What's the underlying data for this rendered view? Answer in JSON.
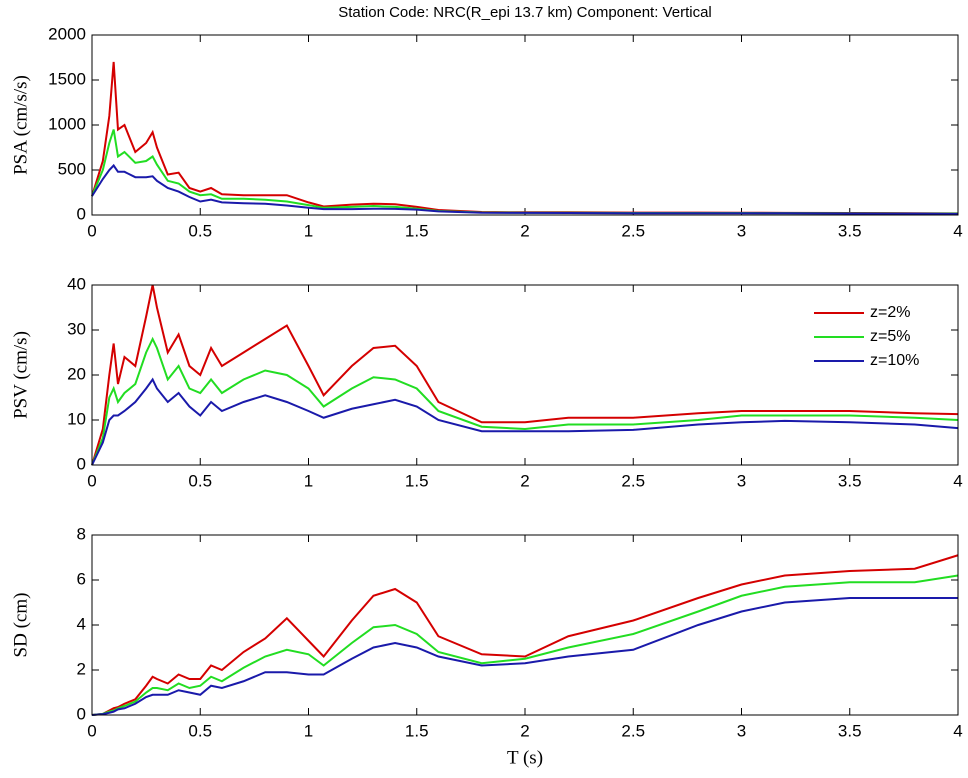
{
  "chart_data": [
    {
      "type": "line",
      "title": "Station Code: NRC(R_epi 13.7 km) Component: Vertical",
      "y_label": "PSA (cm/s/s)",
      "x": [
        0,
        0.05,
        0.08,
        0.1,
        0.12,
        0.15,
        0.2,
        0.25,
        0.28,
        0.3,
        0.35,
        0.4,
        0.45,
        0.5,
        0.55,
        0.6,
        0.7,
        0.8,
        0.9,
        1.0,
        1.07,
        1.2,
        1.3,
        1.4,
        1.5,
        1.6,
        1.8,
        2.0,
        2.2,
        2.5,
        2.8,
        3.0,
        3.2,
        3.5,
        3.8,
        4.0
      ],
      "series": [
        {
          "color": "#d40000",
          "values": [
            210,
            600,
            1100,
            1700,
            950,
            1000,
            700,
            800,
            920,
            750,
            450,
            470,
            300,
            260,
            300,
            230,
            220,
            220,
            220,
            140,
            95,
            115,
            125,
            120,
            90,
            55,
            33,
            30,
            30,
            26,
            26,
            25,
            24,
            22,
            19,
            18
          ]
        },
        {
          "color": "#22dd22",
          "values": [
            210,
            500,
            800,
            950,
            650,
            700,
            580,
            600,
            650,
            560,
            380,
            350,
            260,
            220,
            230,
            180,
            180,
            170,
            150,
            110,
            80,
            90,
            100,
            90,
            70,
            45,
            28,
            25,
            25,
            22,
            22,
            22,
            21,
            20,
            17,
            16
          ]
        },
        {
          "color": "#1a1aaa",
          "values": [
            210,
            400,
            500,
            550,
            480,
            480,
            420,
            420,
            430,
            380,
            300,
            260,
            200,
            150,
            170,
            140,
            130,
            125,
            105,
            80,
            65,
            65,
            70,
            68,
            60,
            40,
            25,
            23,
            22,
            20,
            20,
            20,
            19,
            17,
            15,
            13
          ]
        }
      ],
      "xlim": [
        0,
        4
      ],
      "xticks": [
        0,
        0.5,
        1,
        1.5,
        2,
        2.5,
        3,
        3.5,
        4
      ],
      "ylim": [
        0,
        2000
      ],
      "yticks": [
        0,
        500,
        1000,
        1500,
        2000
      ],
      "grid": false
    },
    {
      "type": "line",
      "y_label": "PSV (cm/s)",
      "x": [
        0,
        0.05,
        0.08,
        0.1,
        0.12,
        0.15,
        0.2,
        0.25,
        0.28,
        0.3,
        0.35,
        0.4,
        0.45,
        0.5,
        0.55,
        0.6,
        0.7,
        0.8,
        0.9,
        1.0,
        1.07,
        1.2,
        1.3,
        1.4,
        1.5,
        1.6,
        1.8,
        2.0,
        2.2,
        2.5,
        2.8,
        3.0,
        3.2,
        3.5,
        3.8,
        4.0
      ],
      "series": [
        {
          "name": "z=2%",
          "color": "#d40000",
          "values": [
            0,
            8,
            20,
            27,
            18,
            24,
            22,
            33,
            40,
            35,
            25,
            29,
            22,
            20,
            26,
            22,
            25,
            28,
            31,
            22,
            15.5,
            22,
            26,
            26.5,
            22,
            14,
            9.5,
            9.5,
            10.5,
            10.5,
            11.5,
            12,
            12,
            12,
            11.5,
            11.3
          ]
        },
        {
          "name": "z=5%",
          "color": "#22dd22",
          "values": [
            0,
            6,
            15,
            17,
            14,
            16,
            18,
            25,
            28,
            26,
            19,
            22,
            17,
            16,
            19,
            16,
            19,
            21,
            20,
            17,
            13,
            17,
            19.5,
            19,
            17,
            12,
            8.5,
            8,
            9,
            9,
            10,
            11,
            11,
            11,
            10.5,
            10
          ]
        },
        {
          "name": "z=10%",
          "color": "#1a1aaa",
          "values": [
            0,
            5,
            10,
            11,
            11,
            12,
            14,
            17,
            19,
            17,
            14,
            16,
            13,
            11,
            14,
            12,
            14,
            15.5,
            14,
            12,
            10.5,
            12.5,
            13.5,
            14.5,
            13,
            10,
            7.5,
            7.5,
            7.5,
            7.8,
            9,
            9.5,
            9.8,
            9.5,
            9,
            8.2
          ]
        }
      ],
      "xlim": [
        0,
        4
      ],
      "xticks": [
        0,
        0.5,
        1,
        1.5,
        2,
        2.5,
        3,
        3.5,
        4
      ],
      "ylim": [
        0,
        40
      ],
      "yticks": [
        0,
        10,
        20,
        30,
        40
      ],
      "grid": false,
      "legend": "northeast"
    },
    {
      "type": "line",
      "y_label": "SD (cm)",
      "x_label": "T (s)",
      "x": [
        0,
        0.05,
        0.08,
        0.1,
        0.12,
        0.15,
        0.2,
        0.25,
        0.28,
        0.3,
        0.35,
        0.4,
        0.45,
        0.5,
        0.55,
        0.6,
        0.7,
        0.8,
        0.9,
        1.0,
        1.07,
        1.2,
        1.3,
        1.4,
        1.5,
        1.6,
        1.8,
        2.0,
        2.2,
        2.5,
        2.8,
        3.0,
        3.2,
        3.5,
        3.8,
        4.0
      ],
      "series": [
        {
          "color": "#d40000",
          "values": [
            0,
            0.05,
            0.2,
            0.3,
            0.35,
            0.5,
            0.7,
            1.3,
            1.7,
            1.6,
            1.4,
            1.8,
            1.6,
            1.6,
            2.2,
            2.0,
            2.8,
            3.4,
            4.3,
            3.3,
            2.6,
            4.2,
            5.3,
            5.6,
            5.0,
            3.5,
            2.7,
            2.6,
            3.5,
            4.2,
            5.2,
            5.8,
            6.2,
            6.4,
            6.5,
            7.1
          ]
        },
        {
          "color": "#22dd22",
          "values": [
            0,
            0.05,
            0.15,
            0.2,
            0.3,
            0.4,
            0.6,
            1.0,
            1.2,
            1.2,
            1.1,
            1.4,
            1.2,
            1.3,
            1.7,
            1.5,
            2.1,
            2.6,
            2.9,
            2.7,
            2.2,
            3.2,
            3.9,
            4.0,
            3.6,
            2.8,
            2.3,
            2.5,
            3.0,
            3.6,
            4.6,
            5.3,
            5.7,
            5.9,
            5.9,
            6.2
          ]
        },
        {
          "color": "#1a1aaa",
          "values": [
            0,
            0.04,
            0.1,
            0.15,
            0.25,
            0.3,
            0.5,
            0.8,
            0.9,
            0.9,
            0.9,
            1.1,
            1.0,
            0.9,
            1.3,
            1.2,
            1.5,
            1.9,
            1.9,
            1.8,
            1.8,
            2.5,
            3.0,
            3.2,
            3.0,
            2.6,
            2.2,
            2.3,
            2.6,
            2.9,
            4.0,
            4.6,
            5.0,
            5.2,
            5.2,
            5.2
          ]
        }
      ],
      "xlim": [
        0,
        4
      ],
      "xticks": [
        0,
        0.5,
        1,
        1.5,
        2,
        2.5,
        3,
        3.5,
        4
      ],
      "ylim": [
        0,
        8
      ],
      "yticks": [
        0,
        2,
        4,
        6,
        8
      ],
      "grid": false
    }
  ]
}
